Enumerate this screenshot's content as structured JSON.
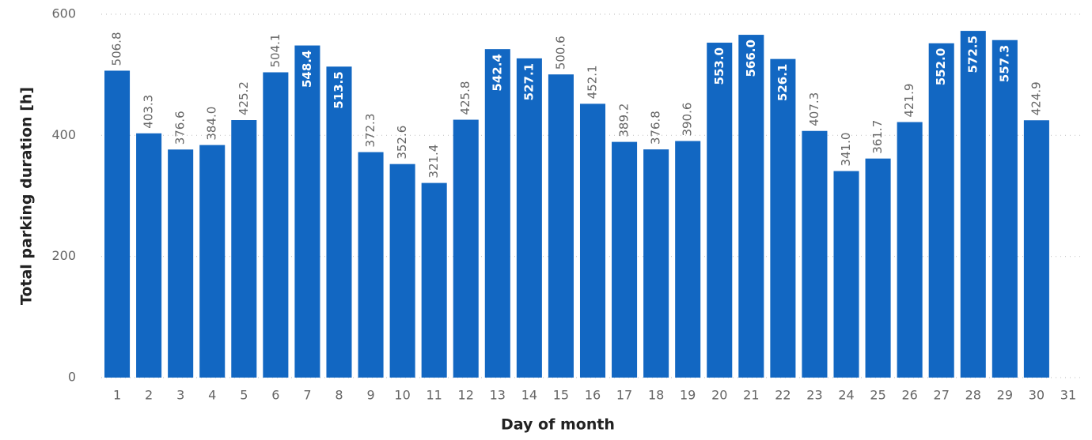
{
  "chart_data": {
    "type": "bar",
    "x_label": "Day of month",
    "y_label": "Total parking duration [h]",
    "categories": [
      "1",
      "2",
      "3",
      "4",
      "5",
      "6",
      "7",
      "8",
      "9",
      "10",
      "11",
      "12",
      "13",
      "14",
      "15",
      "16",
      "17",
      "18",
      "19",
      "20",
      "21",
      "22",
      "23",
      "24",
      "25",
      "26",
      "27",
      "28",
      "29",
      "30",
      "31"
    ],
    "values": [
      506.8,
      403.3,
      376.6,
      384.0,
      425.2,
      504.1,
      548.4,
      513.5,
      372.3,
      352.6,
      321.4,
      425.8,
      542.4,
      527.1,
      500.6,
      452.1,
      389.2,
      376.8,
      390.6,
      553.0,
      566.0,
      526.1,
      407.3,
      341.0,
      361.7,
      421.9,
      552.0,
      572.5,
      557.3,
      424.9,
      null
    ],
    "value_labels": [
      "506.8",
      "403.3",
      "376.6",
      "384.0",
      "425.2",
      "504.1",
      "548.4",
      "513.5",
      "372.3",
      "352.6",
      "321.4",
      "425.8",
      "542.4",
      "527.1",
      "500.6",
      "452.1",
      "389.2",
      "376.8",
      "390.6",
      "553.0",
      "566.0",
      "526.1",
      "407.3",
      "341.0",
      "361.7",
      "421.9",
      "552.0",
      "572.5",
      "557.3",
      "424.9",
      null
    ],
    "color": "#1267c2",
    "ylim": [
      0,
      600
    ],
    "yticks": [
      0,
      200,
      400,
      600
    ],
    "grid": true
  }
}
